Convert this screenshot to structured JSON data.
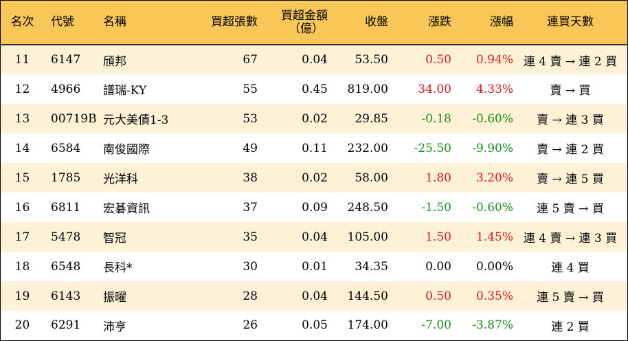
{
  "headers": {
    "rank": "名次",
    "code": "代號",
    "name": "名稱",
    "net_lots": "買超張數",
    "net_amount_line1": "買超金額",
    "net_amount_line2": "（億）",
    "close": "收盤",
    "change": "漲跌",
    "change_pct": "漲幅",
    "streak": "連買天數"
  },
  "colors": {
    "header_bg": "#f9c758",
    "odd_row_bg": "#fdf2d6",
    "up": "#e0141e",
    "down": "#1c8a1c"
  },
  "rows": [
    {
      "rank": "11",
      "code": "6147",
      "name": "頎邦",
      "net_lots": "67",
      "net_amount": "0.04",
      "close": "53.50",
      "change": "0.50",
      "change_pct": "0.94%",
      "direction": "up",
      "streak": "連 4 賣 → 連 2 買"
    },
    {
      "rank": "12",
      "code": "4966",
      "name": "譜瑞-KY",
      "net_lots": "55",
      "net_amount": "0.45",
      "close": "819.00",
      "change": "34.00",
      "change_pct": "4.33%",
      "direction": "up",
      "streak": "賣 → 買"
    },
    {
      "rank": "13",
      "code": "00719B",
      "name": "元大美債1-3",
      "net_lots": "53",
      "net_amount": "0.02",
      "close": "29.85",
      "change": "-0.18",
      "change_pct": "-0.60%",
      "direction": "down",
      "streak": "賣 → 連 3 買"
    },
    {
      "rank": "14",
      "code": "6584",
      "name": "南俊國際",
      "net_lots": "49",
      "net_amount": "0.11",
      "close": "232.00",
      "change": "-25.50",
      "change_pct": "-9.90%",
      "direction": "down",
      "streak": "賣 → 連 2 買"
    },
    {
      "rank": "15",
      "code": "1785",
      "name": "光洋科",
      "net_lots": "38",
      "net_amount": "0.02",
      "close": "58.00",
      "change": "1.80",
      "change_pct": "3.20%",
      "direction": "up",
      "streak": "賣 → 連 5 買"
    },
    {
      "rank": "16",
      "code": "6811",
      "name": "宏碁資訊",
      "net_lots": "37",
      "net_amount": "0.09",
      "close": "248.50",
      "change": "-1.50",
      "change_pct": "-0.60%",
      "direction": "down",
      "streak": "連 5 賣 → 買"
    },
    {
      "rank": "17",
      "code": "5478",
      "name": "智冠",
      "net_lots": "35",
      "net_amount": "0.04",
      "close": "105.00",
      "change": "1.50",
      "change_pct": "1.45%",
      "direction": "up",
      "streak": "連 4 賣 → 連 3 買"
    },
    {
      "rank": "18",
      "code": "6548",
      "name": "長科*",
      "net_lots": "30",
      "net_amount": "0.01",
      "close": "34.35",
      "change": "0.00",
      "change_pct": "0.00%",
      "direction": "flat",
      "streak": "連 4 買"
    },
    {
      "rank": "19",
      "code": "6143",
      "name": "振曜",
      "net_lots": "28",
      "net_amount": "0.04",
      "close": "144.50",
      "change": "0.50",
      "change_pct": "0.35%",
      "direction": "up",
      "streak": "連 5 賣 → 買"
    },
    {
      "rank": "20",
      "code": "6291",
      "name": "沛亨",
      "net_lots": "26",
      "net_amount": "0.05",
      "close": "174.00",
      "change": "-7.00",
      "change_pct": "-3.87%",
      "direction": "down",
      "streak": "連 2 買"
    }
  ]
}
